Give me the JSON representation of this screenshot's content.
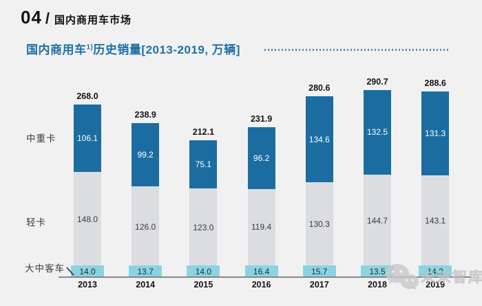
{
  "header": {
    "number": "04",
    "divider": "/",
    "title": "国内商用车市场"
  },
  "chart_data": {
    "type": "bar",
    "stacked": true,
    "title": "国内商用车1)历史销量[2013-2019, 万辆]",
    "title_parts": {
      "main": "国内商用车",
      "superscript": "1)",
      "rest": "历史销量[2013-2019, 万辆]"
    },
    "unit": "万辆",
    "categories": [
      "2013",
      "2014",
      "2015",
      "2016",
      "2017",
      "2018",
      "2019"
    ],
    "series": [
      {
        "name": "大中客车",
        "color": "#8AD4E2",
        "values": [
          14.0,
          13.7,
          14.0,
          16.4,
          15.7,
          13.5,
          14.2
        ]
      },
      {
        "name": "轻卡",
        "color": "#DCDDE0",
        "values": [
          148.0,
          126.0,
          123.0,
          119.4,
          130.3,
          144.7,
          143.1
        ]
      },
      {
        "name": "中重卡",
        "color": "#1B6DA1",
        "values": [
          106.1,
          99.2,
          75.1,
          96.2,
          134.6,
          132.5,
          131.3
        ]
      }
    ],
    "totals": [
      268.0,
      238.9,
      212.1,
      231.9,
      280.6,
      290.7,
      288.6
    ],
    "ylim": [
      0,
      300
    ],
    "grid": false,
    "legend_position": "left-row-labels"
  },
  "colors": {
    "background": "#F1F1F2",
    "title_blue": "#1E6FA8",
    "bar_blue": "#1B6DA1",
    "bar_gray": "#DCDDE0",
    "bar_cyan": "#8AD4E2",
    "axis_line": "#878787"
  },
  "watermark": {
    "text": "未来智库"
  }
}
